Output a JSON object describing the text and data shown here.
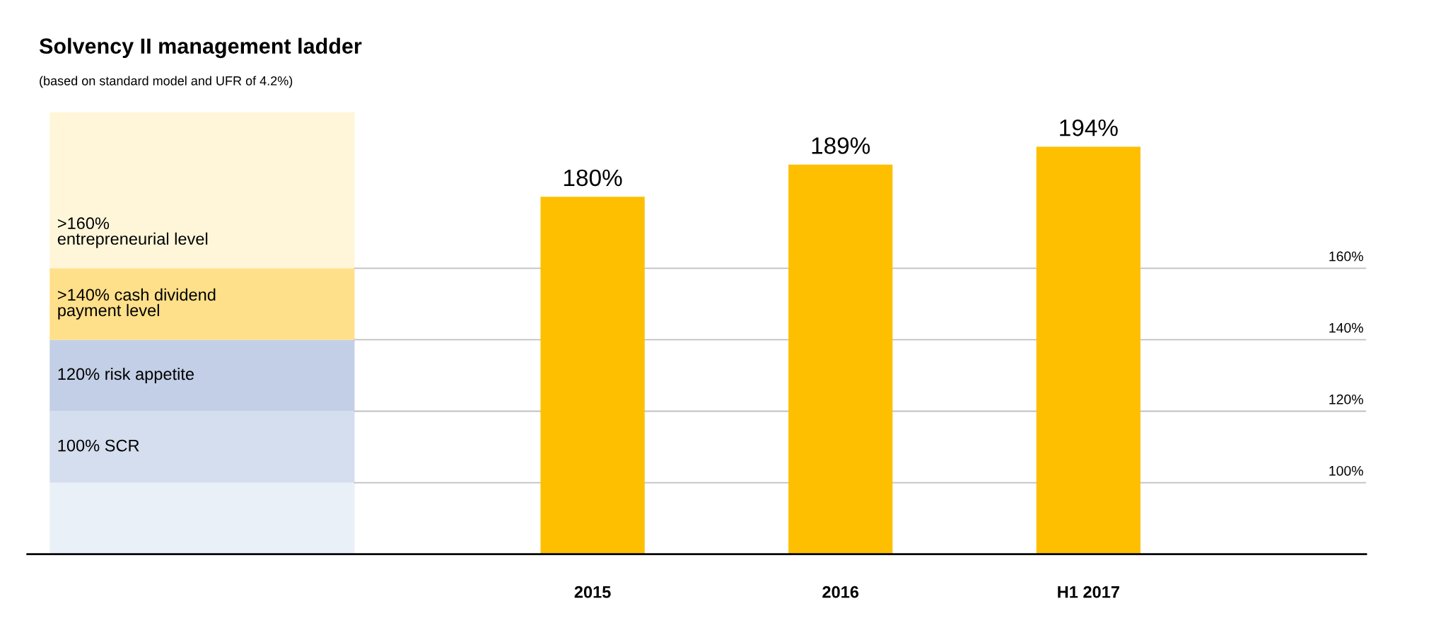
{
  "chart_data": {
    "type": "bar",
    "title": "Solvency II management ladder",
    "subtitle": "(based on standard model and UFR of 4.2%)",
    "categories": [
      "2015",
      "2016",
      "H1 2017"
    ],
    "values": [
      180,
      189,
      194
    ],
    "color": "#fdbf00",
    "value_labels": [
      "180%",
      "189%",
      "194%"
    ],
    "grid": false,
    "ref_lines": [
      {
        "axis": "y",
        "value": 100,
        "label": "100%",
        "color": "#bfbfbf"
      },
      {
        "axis": "y",
        "value": 120,
        "label": "120%",
        "color": "#bfbfbf"
      },
      {
        "axis": "y",
        "value": 140,
        "label": "140%",
        "color": "#bfbfbf"
      },
      {
        "axis": "y",
        "value": 160,
        "label": "160%",
        "color": "#bfbfbf"
      }
    ],
    "annotations": [
      ">160%\nentrepreneurial level",
      ">140% cash dividend\npayment level",
      "120% risk appetite",
      "100% SCR"
    ]
  }
}
